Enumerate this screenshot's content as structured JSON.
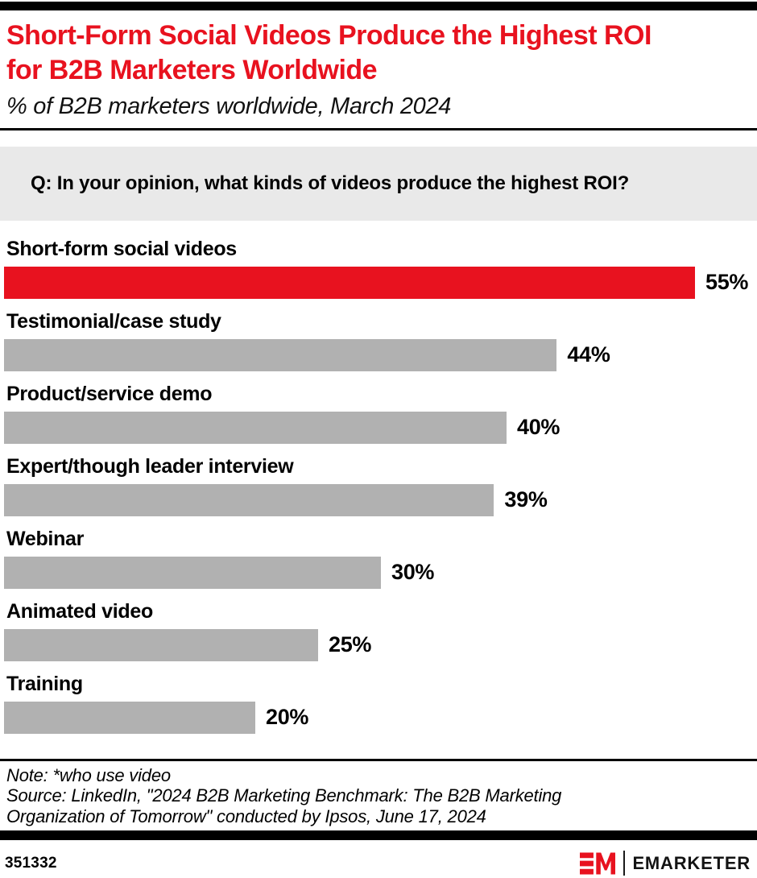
{
  "page": {
    "accent_red": "#e8121f",
    "bar_gray": "#b1b1b1",
    "question_bg": "#e9e9e9",
    "bar_black": "#000000"
  },
  "header": {
    "title_line1": "Short-Form Social Videos Produce the Highest ROI",
    "title_line2": "for B2B Marketers Worldwide",
    "subtitle": "% of B2B marketers worldwide, March 2024"
  },
  "question": {
    "text": "Q: In your opinion, what kinds of videos produce the highest ROI?"
  },
  "chart_data": {
    "type": "bar",
    "orientation": "horizontal",
    "title": "Short-Form Social Videos Produce the Highest ROI for B2B Marketers Worldwide",
    "subtitle": "% of B2B marketers worldwide, March 2024",
    "categories": [
      "Short-form social videos",
      "Testimonial/case study",
      "Product/service demo",
      "Expert/though leader interview",
      "Webinar",
      "Animated video",
      "Training"
    ],
    "values": [
      55,
      44,
      40,
      39,
      30,
      25,
      20
    ],
    "value_labels": [
      "55%",
      "44%",
      "40%",
      "39%",
      "30%",
      "25%",
      "20%"
    ],
    "value_suffix": "%",
    "xlim": [
      0,
      60
    ],
    "grid": false,
    "legend": false,
    "highlight_index": 0,
    "highlight_color": "#e8121f",
    "bar_color": "#b1b1b1"
  },
  "notes": {
    "note": "Note: *who use video",
    "source": "Source: LinkedIn, \"2024 B2B Marketing Benchmark: The B2B Marketing Organization of Tomorrow\" conducted by Ipsos,  June 17, 2024"
  },
  "footer": {
    "chart_id": "351332",
    "brand": "EMARKETER"
  }
}
